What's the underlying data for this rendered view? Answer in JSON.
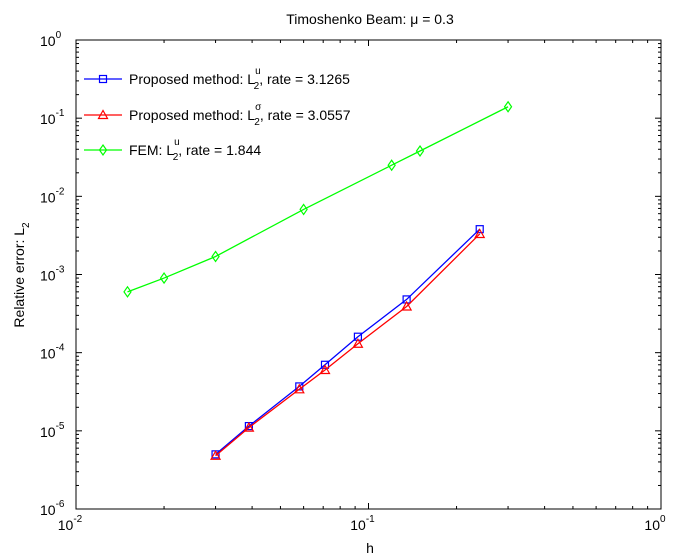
{
  "chart_data": {
    "type": "line",
    "title_prefix": "Timoshenko Beam: ",
    "title_symbol": "μ",
    "title_suffix": " = 0.3",
    "xlabel": "h",
    "ylabel_prefix": "Relative error: ",
    "ylabel_main": "L",
    "ylabel_sub": "2",
    "x_scale": "log",
    "y_scale": "log",
    "xlim": [
      0.01,
      1
    ],
    "ylim": [
      1e-06,
      1
    ],
    "grid": false,
    "legend_position": "top-left",
    "x_ticks": [
      {
        "value": 0.01,
        "base": "10",
        "exp": "-2"
      },
      {
        "value": 0.1,
        "base": "10",
        "exp": "-1"
      },
      {
        "value": 1,
        "base": "10",
        "exp": "0"
      }
    ],
    "y_ticks": [
      {
        "value": 1e-06,
        "base": "10",
        "exp": "-6"
      },
      {
        "value": 1e-05,
        "base": "10",
        "exp": "-5"
      },
      {
        "value": 0.0001,
        "base": "10",
        "exp": "-4"
      },
      {
        "value": 0.001,
        "base": "10",
        "exp": "-3"
      },
      {
        "value": 0.01,
        "base": "10",
        "exp": "-2"
      },
      {
        "value": 0.1,
        "base": "10",
        "exp": "-1"
      },
      {
        "value": 1,
        "base": "10",
        "exp": "0"
      }
    ],
    "series": [
      {
        "name": "Proposed method: L",
        "legend_sub": "2",
        "legend_sup": "u",
        "legend_suffix": ", rate = 3.1265",
        "color": "#0000ff",
        "marker": "square",
        "x": [
          0.03,
          0.039,
          0.058,
          0.071,
          0.092,
          0.135,
          0.24
        ],
        "y": [
          5e-06,
          1.15e-05,
          3.7e-05,
          7e-05,
          0.00016,
          0.00048,
          0.0038
        ]
      },
      {
        "name": "Proposed method: L",
        "legend_sub": "2",
        "legend_sup": "σ",
        "legend_suffix": ", rate = 3.0557",
        "color": "#ff0000",
        "marker": "triangle",
        "x": [
          0.03,
          0.039,
          0.058,
          0.071,
          0.092,
          0.135,
          0.24
        ],
        "y": [
          4.8e-06,
          1.1e-05,
          3.4e-05,
          6e-05,
          0.00013,
          0.00039,
          0.0033
        ]
      },
      {
        "name": "FEM: L",
        "legend_sub": "2",
        "legend_sup": "u",
        "legend_suffix": ", rate = 1.844",
        "color": "#00ff00",
        "marker": "diamond",
        "x": [
          0.015,
          0.02,
          0.03,
          0.06,
          0.12,
          0.15,
          0.3
        ],
        "y": [
          0.0006,
          0.0009,
          0.0017,
          0.0068,
          0.025,
          0.038,
          0.14
        ]
      }
    ]
  }
}
